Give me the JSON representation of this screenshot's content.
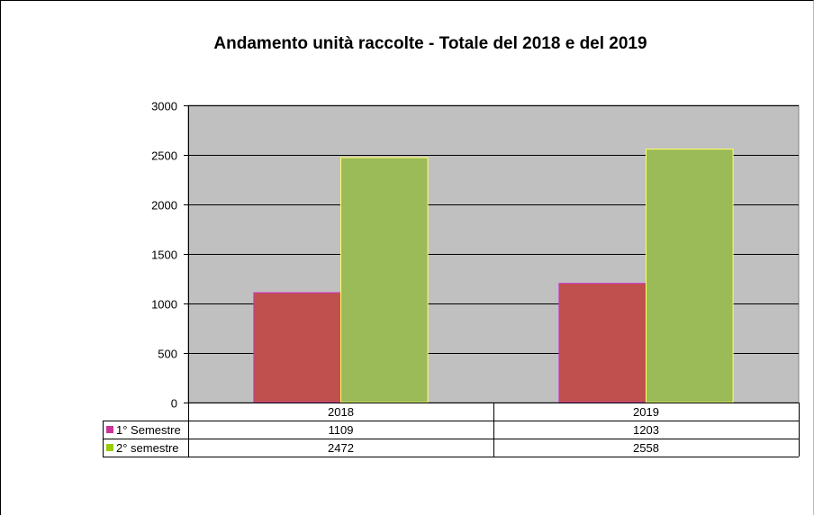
{
  "chart_data": {
    "type": "bar",
    "title": "Andamento unità raccolte - Totale del 2018 e del 2019",
    "categories": [
      "2018",
      "2019"
    ],
    "series": [
      {
        "name": "1° Semestre",
        "values": [
          1109,
          1203
        ],
        "color": "#c0504d"
      },
      {
        "name": "2° semestre",
        "values": [
          2472,
          2558
        ],
        "color": "#9bbb59"
      }
    ],
    "ylim": [
      0,
      3000
    ],
    "yticks": [
      0,
      500,
      1000,
      1500,
      2000,
      2500,
      3000
    ],
    "grid": true,
    "legend": "data-table",
    "plot_background": "#c0c0c0",
    "legend_key_colors": [
      "#cc3399",
      "#99cc00"
    ],
    "bar_outline_colors": [
      "#cc33cc",
      "#ffff66"
    ]
  }
}
